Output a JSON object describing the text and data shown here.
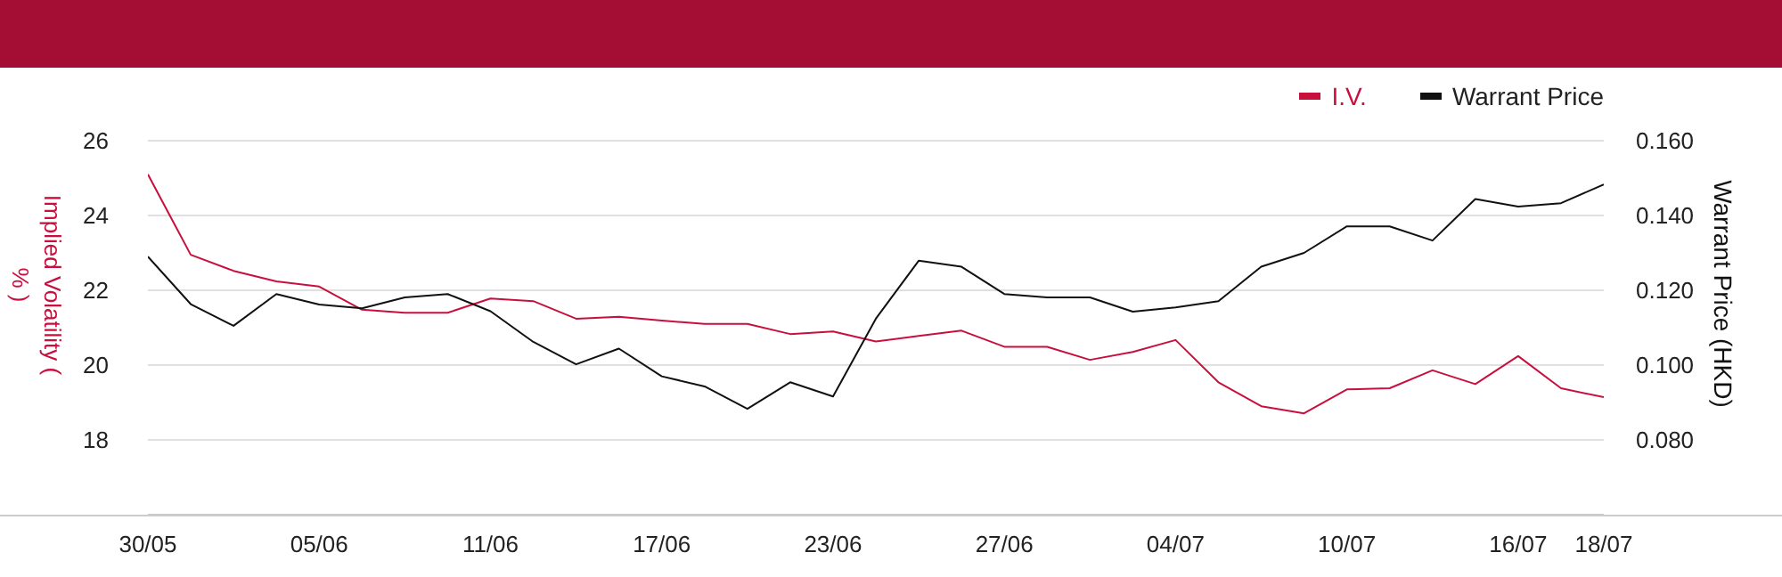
{
  "chart_data": {
    "type": "line",
    "categories": [
      "30/05",
      null,
      null,
      null,
      "05/06",
      null,
      null,
      null,
      "11/06",
      null,
      null,
      null,
      "17/06",
      null,
      null,
      null,
      "23/06",
      null,
      null,
      null,
      "27/06",
      null,
      null,
      null,
      "04/07",
      null,
      null,
      null,
      "10/07",
      null,
      null,
      null,
      "16/07",
      null,
      "18/07"
    ],
    "series": [
      {
        "name": "I.V.",
        "color": "#c8103e",
        "values": [
          25.1,
          22.95,
          22.52,
          22.24,
          22.1,
          21.48,
          21.4,
          21.4,
          21.78,
          21.71,
          21.24,
          21.29,
          21.19,
          21.1,
          21.1,
          20.83,
          20.9,
          20.63,
          20.78,
          20.92,
          20.49,
          20.49,
          20.14,
          20.35,
          20.67,
          19.54,
          18.9,
          18.71,
          19.35,
          19.38,
          19.86,
          19.49,
          20.24,
          19.38,
          19.14
        ]
      },
      {
        "name": "Warrant Price",
        "color": "#111111",
        "axis": "y2",
        "values": [
          0.129,
          0.1163,
          0.1105,
          0.119,
          0.1162,
          0.1152,
          0.1181,
          0.119,
          0.1144,
          0.1062,
          0.1002,
          0.1044,
          0.097,
          0.0943,
          0.0883,
          0.0954,
          0.0916,
          0.1124,
          0.1279,
          0.1263,
          0.119,
          0.1181,
          0.1181,
          0.1143,
          0.1154,
          0.1171,
          0.1263,
          0.13,
          0.1371,
          0.1371,
          0.1333,
          0.1444,
          0.1424,
          0.1433,
          0.1483
        ]
      }
    ],
    "ylabel": "Implied Volatility ( % )",
    "y2label": "Warrant Price (HKD)",
    "ylim": [
      16,
      26
    ],
    "yticks": [
      18,
      20,
      22,
      24,
      26
    ],
    "y2lim": [
      0.06,
      0.16
    ],
    "y2ticks": [
      {
        "value": 0.08,
        "label": "0.080"
      },
      {
        "value": 0.1,
        "label": "0.100"
      },
      {
        "value": 0.12,
        "label": "0.120"
      },
      {
        "value": 0.14,
        "label": "0.140"
      },
      {
        "value": 0.16,
        "label": "0.160"
      }
    ],
    "grid": "y",
    "legend": "top right",
    "marker": "none",
    "line_style": "solid"
  }
}
